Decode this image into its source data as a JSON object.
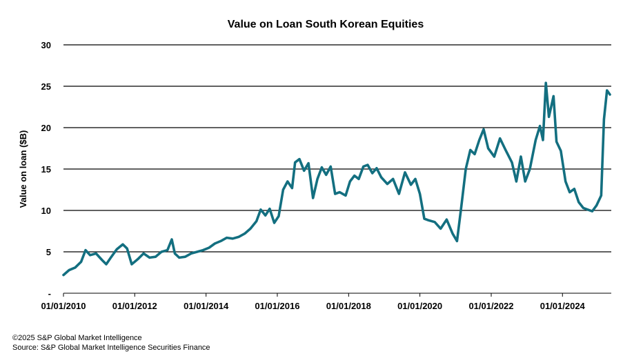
{
  "chart_data": {
    "type": "line",
    "title": "Value on Loan South Korean Equities",
    "xlabel": "",
    "ylabel": "Value on loan ($B)",
    "ylim": [
      0,
      30
    ],
    "yticks": [
      {
        "value": 0,
        "label": "-"
      },
      {
        "value": 5,
        "label": "5"
      },
      {
        "value": 10,
        "label": "10"
      },
      {
        "value": 15,
        "label": "15"
      },
      {
        "value": 20,
        "label": "20"
      },
      {
        "value": 25,
        "label": "25"
      },
      {
        "value": 30,
        "label": "30"
      }
    ],
    "xlim": [
      "2010-01-01",
      "2025-05-15"
    ],
    "xticks": [
      {
        "date": "2010-01-01",
        "label": "01/01/2010"
      },
      {
        "date": "2012-01-01",
        "label": "01/01/2012"
      },
      {
        "date": "2014-01-01",
        "label": "01/01/2014"
      },
      {
        "date": "2016-01-01",
        "label": "01/01/2016"
      },
      {
        "date": "2018-01-01",
        "label": "01/01/2018"
      },
      {
        "date": "2020-01-01",
        "label": "01/01/2020"
      },
      {
        "date": "2022-01-01",
        "label": "01/01/2022"
      },
      {
        "date": "2024-01-01",
        "label": "01/01/2024"
      }
    ],
    "grid": "horizontal",
    "line_color": "#136f80",
    "series": [
      {
        "name": "",
        "points": [
          [
            "2010-01-01",
            2.2
          ],
          [
            "2010-03-01",
            2.8
          ],
          [
            "2010-05-01",
            3.1
          ],
          [
            "2010-07-01",
            3.8
          ],
          [
            "2010-08-15",
            5.2
          ],
          [
            "2010-10-01",
            4.6
          ],
          [
            "2010-12-01",
            4.8
          ],
          [
            "2011-02-01",
            4.0
          ],
          [
            "2011-03-15",
            3.5
          ],
          [
            "2011-05-01",
            4.3
          ],
          [
            "2011-07-01",
            5.3
          ],
          [
            "2011-09-01",
            5.9
          ],
          [
            "2011-10-15",
            5.4
          ],
          [
            "2011-12-01",
            3.5
          ],
          [
            "2012-02-01",
            4.1
          ],
          [
            "2012-04-01",
            4.8
          ],
          [
            "2012-06-01",
            4.3
          ],
          [
            "2012-08-01",
            4.4
          ],
          [
            "2012-10-01",
            5.0
          ],
          [
            "2012-12-01",
            5.2
          ],
          [
            "2013-01-15",
            6.5
          ],
          [
            "2013-02-15",
            4.8
          ],
          [
            "2013-04-01",
            4.3
          ],
          [
            "2013-06-01",
            4.4
          ],
          [
            "2013-08-01",
            4.8
          ],
          [
            "2013-10-01",
            5.0
          ],
          [
            "2013-12-01",
            5.2
          ],
          [
            "2014-02-01",
            5.5
          ],
          [
            "2014-04-01",
            6.0
          ],
          [
            "2014-06-01",
            6.3
          ],
          [
            "2014-08-01",
            6.7
          ],
          [
            "2014-10-01",
            6.6
          ],
          [
            "2014-12-01",
            6.8
          ],
          [
            "2015-02-01",
            7.2
          ],
          [
            "2015-04-01",
            7.8
          ],
          [
            "2015-06-01",
            8.7
          ],
          [
            "2015-07-15",
            10.1
          ],
          [
            "2015-09-01",
            9.4
          ],
          [
            "2015-10-15",
            10.2
          ],
          [
            "2015-12-01",
            8.5
          ],
          [
            "2016-01-15",
            9.3
          ],
          [
            "2016-03-01",
            12.5
          ],
          [
            "2016-04-15",
            13.5
          ],
          [
            "2016-06-01",
            12.7
          ],
          [
            "2016-07-01",
            15.8
          ],
          [
            "2016-08-15",
            16.2
          ],
          [
            "2016-10-01",
            14.8
          ],
          [
            "2016-11-15",
            15.7
          ],
          [
            "2017-01-01",
            11.5
          ],
          [
            "2017-02-15",
            13.8
          ],
          [
            "2017-04-01",
            15.2
          ],
          [
            "2017-05-15",
            14.3
          ],
          [
            "2017-07-01",
            15.3
          ],
          [
            "2017-08-15",
            12.0
          ],
          [
            "2017-10-01",
            12.2
          ],
          [
            "2017-12-01",
            11.8
          ],
          [
            "2018-01-15",
            13.5
          ],
          [
            "2018-03-01",
            14.2
          ],
          [
            "2018-04-15",
            13.8
          ],
          [
            "2018-06-01",
            15.3
          ],
          [
            "2018-07-15",
            15.5
          ],
          [
            "2018-09-01",
            14.5
          ],
          [
            "2018-10-15",
            15.1
          ],
          [
            "2018-12-01",
            14.0
          ],
          [
            "2019-02-01",
            13.2
          ],
          [
            "2019-04-01",
            13.8
          ],
          [
            "2019-06-01",
            12.0
          ],
          [
            "2019-08-01",
            14.6
          ],
          [
            "2019-10-01",
            13.1
          ],
          [
            "2019-11-15",
            13.8
          ],
          [
            "2020-01-01",
            12.0
          ],
          [
            "2020-02-15",
            9.0
          ],
          [
            "2020-04-01",
            8.8
          ],
          [
            "2020-06-01",
            8.6
          ],
          [
            "2020-08-01",
            7.8
          ],
          [
            "2020-10-01",
            8.9
          ],
          [
            "2020-12-01",
            7.2
          ],
          [
            "2021-01-15",
            6.3
          ],
          [
            "2021-03-01",
            10.5
          ],
          [
            "2021-04-15",
            15.0
          ],
          [
            "2021-06-01",
            17.3
          ],
          [
            "2021-07-15",
            16.8
          ],
          [
            "2021-09-01",
            18.5
          ],
          [
            "2021-10-15",
            19.8
          ],
          [
            "2021-12-01",
            17.5
          ],
          [
            "2022-02-01",
            16.5
          ],
          [
            "2022-04-01",
            18.7
          ],
          [
            "2022-06-01",
            17.2
          ],
          [
            "2022-08-01",
            15.8
          ],
          [
            "2022-09-15",
            13.5
          ],
          [
            "2022-11-01",
            16.5
          ],
          [
            "2022-12-15",
            13.5
          ],
          [
            "2023-02-01",
            15.0
          ],
          [
            "2023-04-01",
            18.5
          ],
          [
            "2023-05-15",
            20.2
          ],
          [
            "2023-06-15",
            18.5
          ],
          [
            "2023-07-15",
            25.4
          ],
          [
            "2023-08-15",
            21.3
          ],
          [
            "2023-10-01",
            23.8
          ],
          [
            "2023-11-01",
            18.3
          ],
          [
            "2023-12-15",
            17.2
          ],
          [
            "2024-02-01",
            13.5
          ],
          [
            "2024-03-15",
            12.2
          ],
          [
            "2024-05-01",
            12.6
          ],
          [
            "2024-06-15",
            11.0
          ],
          [
            "2024-08-01",
            10.3
          ],
          [
            "2024-09-15",
            10.1
          ],
          [
            "2024-11-01",
            9.9
          ],
          [
            "2024-12-15",
            10.6
          ],
          [
            "2025-02-01",
            11.8
          ],
          [
            "2025-03-01",
            21.0
          ],
          [
            "2025-04-01",
            24.5
          ],
          [
            "2025-05-01",
            24.0
          ]
        ]
      }
    ]
  },
  "footer": {
    "copyright": "©2025 S&P Global Market Intelligence",
    "source": "Source: S&P Global Market Intelligence Securities Finance"
  }
}
